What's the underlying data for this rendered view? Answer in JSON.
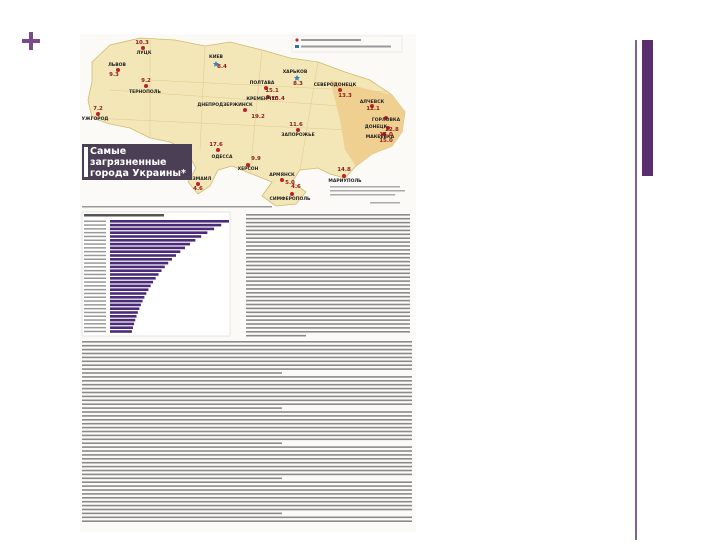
{
  "header": {
    "title": "Самые загрязненные города Украины*"
  },
  "map": {
    "cities": [
      {
        "name": "ЛУЦК",
        "value": "10.3"
      },
      {
        "name": "ЛЬВОВ",
        "value": "9.3"
      },
      {
        "name": "ТЕРНОПОЛЬ",
        "value": "9.2"
      },
      {
        "name": "УЖГОРОД",
        "value": "7.2"
      },
      {
        "name": "КИЕВ",
        "value": "8.4"
      },
      {
        "name": "ХАРЬКОВ",
        "value": "8.3"
      },
      {
        "name": "ПОЛТАВА",
        "value": "15.1"
      },
      {
        "name": "КРЕМЕНЧУГ",
        "value": "13.4"
      },
      {
        "name": "ДНЕПРОДЗЕРЖИНСК",
        "value": "19.2"
      },
      {
        "name": "СЕВЕРОДОНЕЦК",
        "value": "13.3"
      },
      {
        "name": "ЗАПОРОЖЬЕ",
        "value": "11.6"
      },
      {
        "name": "ОДЕССА",
        "value": "17.6"
      },
      {
        "name": "ХЕРСОН",
        "value": "9.9"
      },
      {
        "name": "ИЗМАИЛ",
        "value": "4.6"
      },
      {
        "name": "АРМЯНСК",
        "value": "5.0"
      },
      {
        "name": "СИМФЕРОПОЛЬ",
        "value": "4.6"
      },
      {
        "name": "МАРИУПОЛЬ",
        "value": "14.8"
      },
      {
        "name": "ДОНЕЦК",
        "value": "22.8"
      },
      {
        "name": "МАКЕЕВКА",
        "value": "16.0"
      },
      {
        "name": "ГОРЛОВКА",
        "value": "15.0"
      },
      {
        "name": "АЛЧЕВСК",
        "value": "12.1"
      }
    ]
  }
}
